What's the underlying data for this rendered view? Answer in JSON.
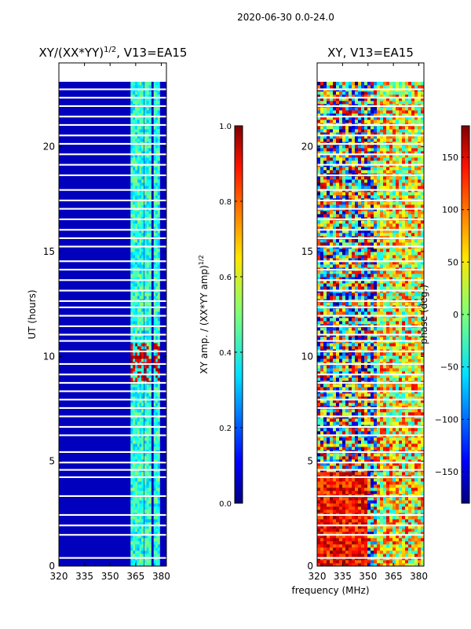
{
  "suptitle": "2020-06-30 0.0-24.0",
  "shared_xlabel": "frequency (MHz)",
  "colors": {
    "frame": "#000000",
    "background": "#000080"
  },
  "chart_data": [
    {
      "type": "heatmap",
      "title_main": "XY/(XX*YY)",
      "title_sup": "1/2",
      "title_tail": ", V13=EA15",
      "xlabel": "",
      "ylabel": "UT (hours)",
      "xlim": [
        320,
        383
      ],
      "ylim": [
        0,
        24
      ],
      "xticks": [
        "320",
        "335",
        "350",
        "365",
        "380"
      ],
      "xtick_values": [
        320,
        335,
        350,
        365,
        380
      ],
      "yticks": [
        "0",
        "5",
        "10",
        "15",
        "20"
      ],
      "ytick_values": [
        0,
        5,
        10,
        15,
        20
      ],
      "data_extent": [
        0,
        23.1
      ],
      "bright_band_mhz": [
        [
          362,
          366
        ],
        [
          366,
          369.5
        ],
        [
          370,
          374
        ],
        [
          375.5,
          379
        ]
      ],
      "colorbar": {
        "label_main": "XY amp. / (XX*YY amp)",
        "label_sup": "1/2",
        "min": 0.0,
        "max": 1.0,
        "ticks": [
          "0.0",
          "0.2",
          "0.4",
          "0.6",
          "0.8",
          "1.0"
        ],
        "tick_values": [
          0.0,
          0.2,
          0.4,
          0.6,
          0.8,
          1.0
        ]
      }
    },
    {
      "type": "heatmap",
      "title_main": "XY, V13=EA15",
      "xlabel": "frequency (MHz)",
      "ylabel": "",
      "xlim": [
        320,
        383
      ],
      "ylim": [
        0,
        24
      ],
      "xticks": [
        "320",
        "335",
        "350",
        "365",
        "380"
      ],
      "xtick_values": [
        320,
        335,
        350,
        365,
        380
      ],
      "yticks": [
        "0",
        "5",
        "10",
        "15",
        "20"
      ],
      "ytick_values": [
        0,
        5,
        10,
        15,
        20
      ],
      "data_extent": [
        0,
        23.1
      ],
      "colorbar": {
        "label": "phase (deg.)",
        "min": -180,
        "max": 180,
        "ticks": [
          "−150",
          "−100",
          "−50",
          "0",
          "50",
          "100",
          "150"
        ],
        "tick_values": [
          -150,
          -100,
          -50,
          0,
          50,
          100,
          150
        ]
      }
    }
  ]
}
